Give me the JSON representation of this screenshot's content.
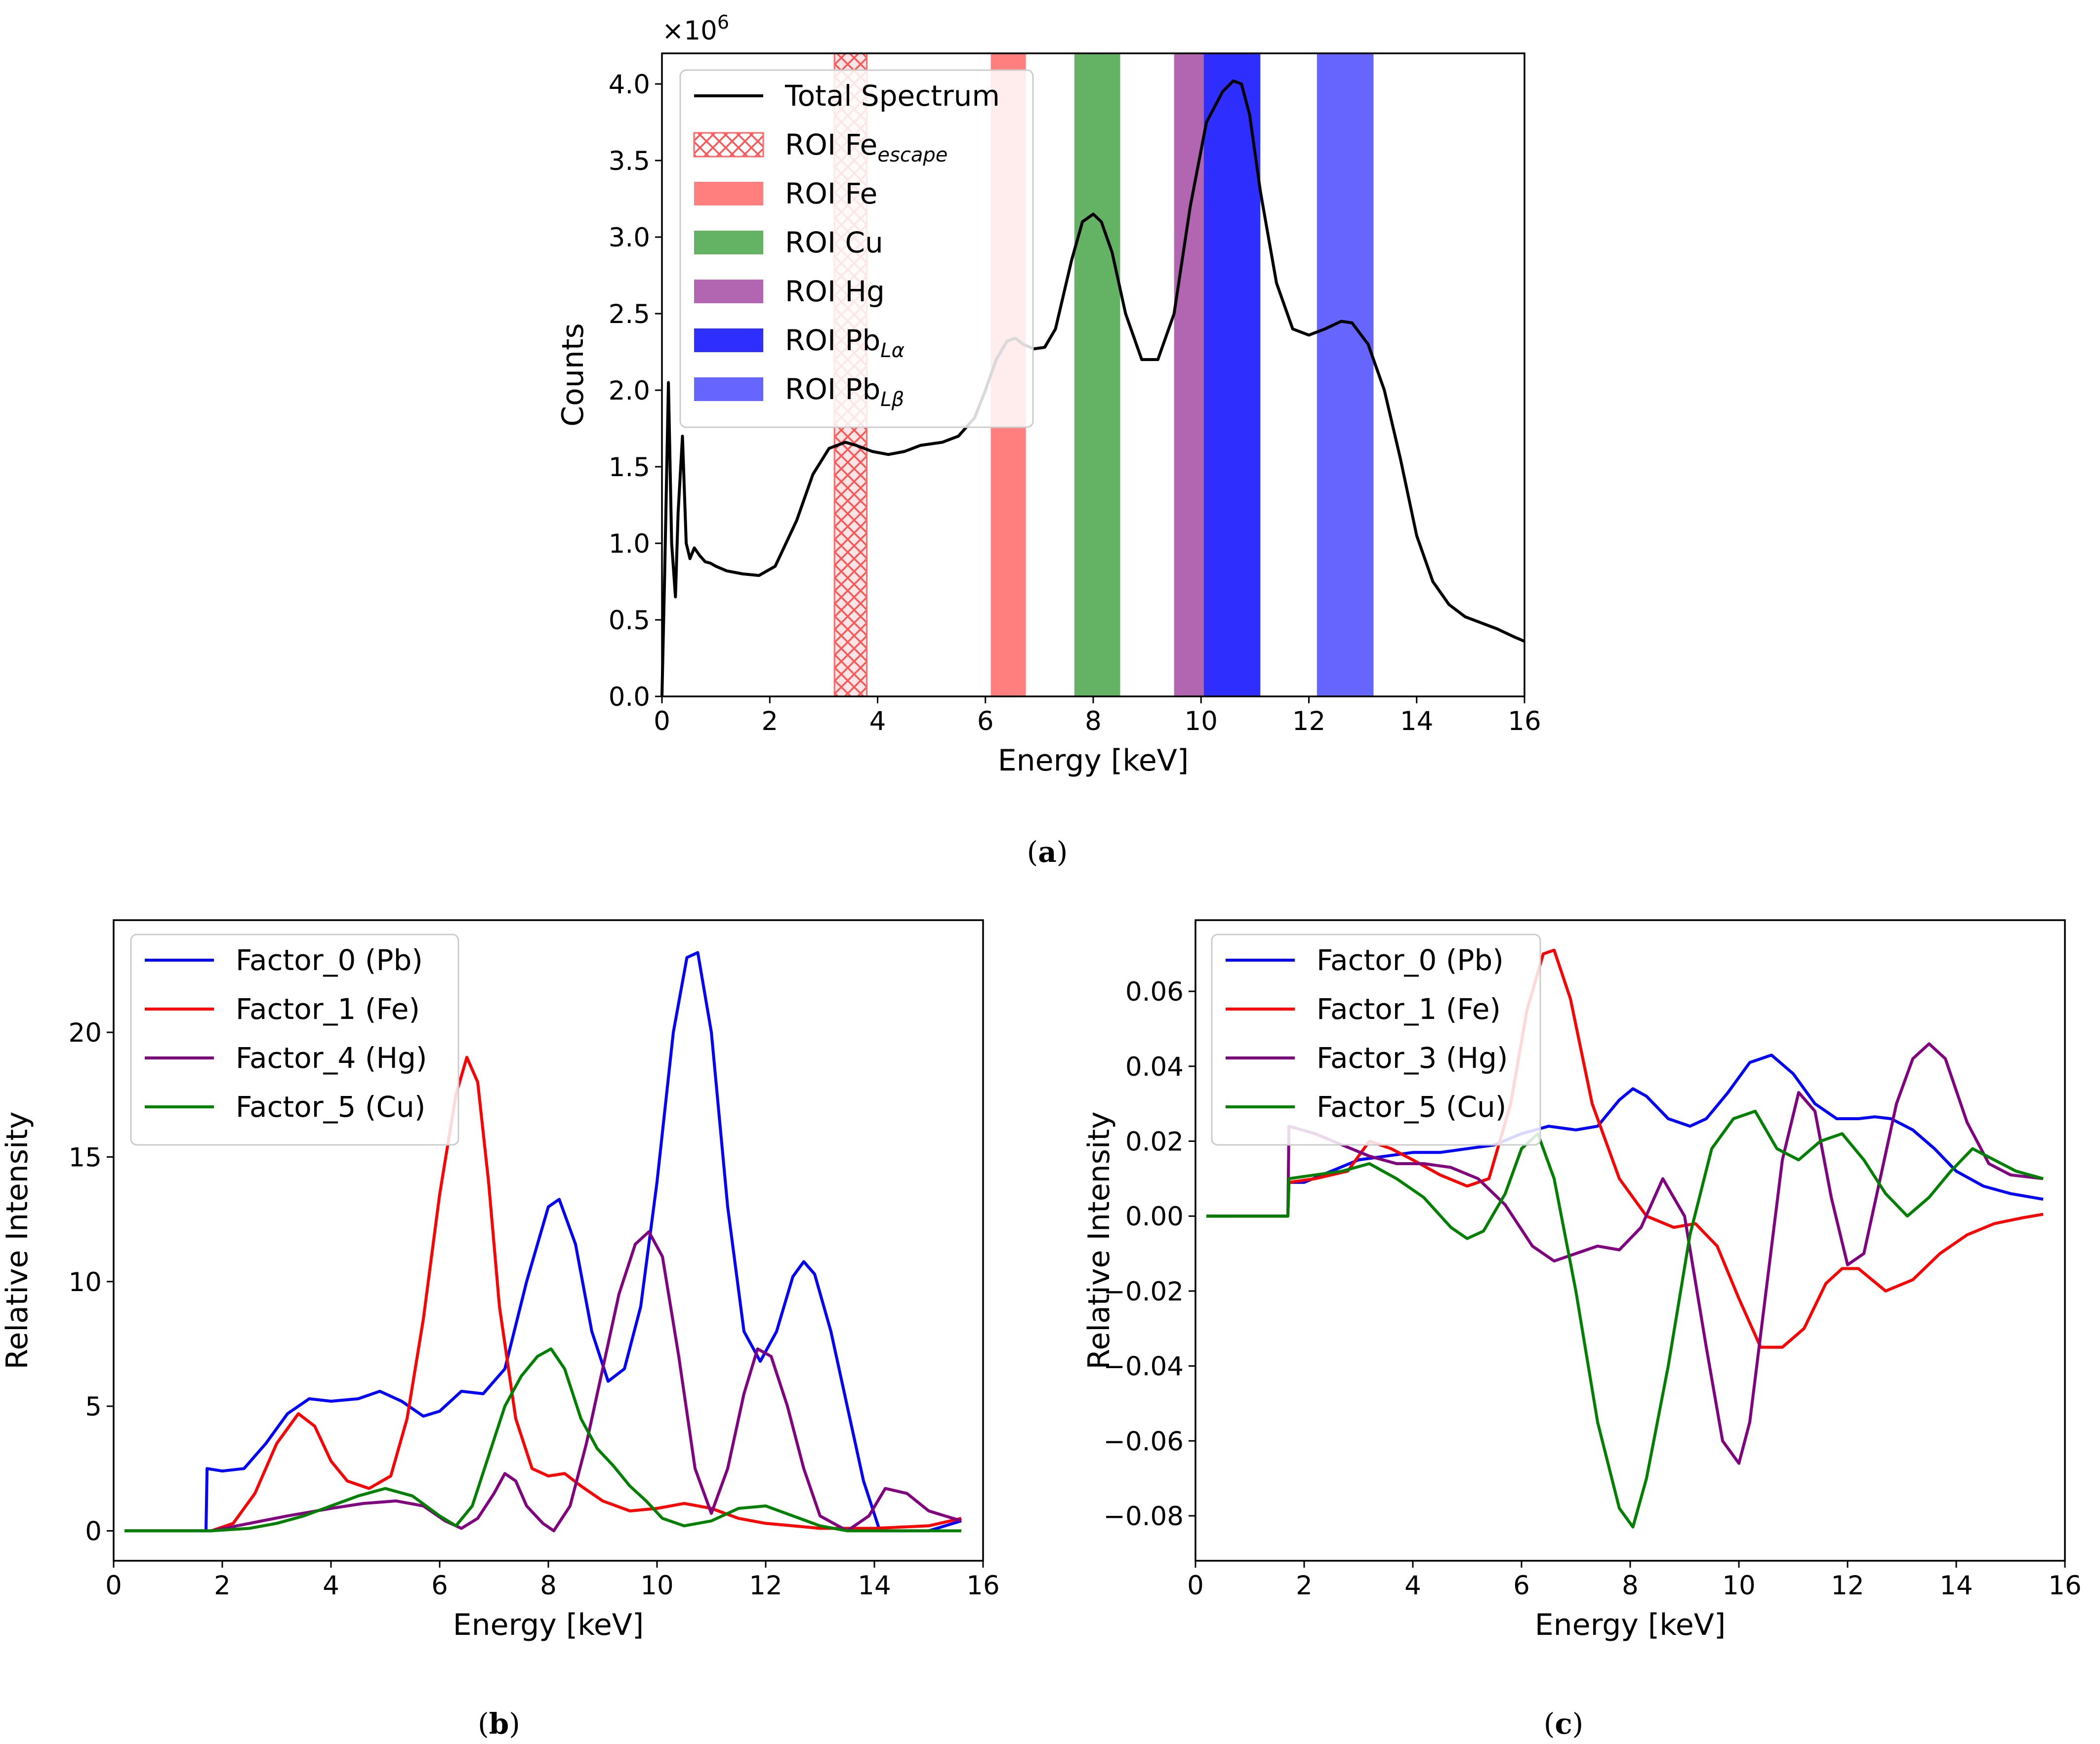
{
  "chart_data": [
    {
      "id": "a",
      "type": "line",
      "caption": "a",
      "xlabel": "Energy [keV]",
      "ylabel": "Counts",
      "offset_text": "×10",
      "offset_exponent": "6",
      "xlim": [
        0,
        16
      ],
      "ylim": [
        0,
        4.2
      ],
      "xticks": [
        0,
        2,
        4,
        6,
        8,
        10,
        12,
        14,
        16
      ],
      "yticks": [
        0.0,
        0.5,
        1.0,
        1.5,
        2.0,
        2.5,
        3.0,
        3.5,
        4.0
      ],
      "ytick_decimals": 1,
      "legend_location": "upper left",
      "rois": [
        {
          "name": "ROI Fe",
          "sub": "escape",
          "x0": 3.2,
          "x1": 3.8,
          "color": "#ff6666",
          "hatch": true,
          "alpha": 0.9
        },
        {
          "name": "ROI Fe",
          "sub": "",
          "x0": 6.1,
          "x1": 6.75,
          "color": "#ff7f7f",
          "hatch": false,
          "alpha": 1.0
        },
        {
          "name": "ROI Cu",
          "sub": "",
          "x0": 7.65,
          "x1": 8.5,
          "color": "#64b264",
          "hatch": false,
          "alpha": 1.0
        },
        {
          "name": "ROI Hg",
          "sub": "",
          "x0": 9.5,
          "x1": 10.05,
          "color": "#b266b2",
          "hatch": false,
          "alpha": 1.0
        },
        {
          "name": "ROI Pb",
          "sub": "Lα",
          "x0": 10.05,
          "x1": 11.1,
          "color": "#2e2eff",
          "hatch": false,
          "alpha": 1.0
        },
        {
          "name": "ROI Pb",
          "sub": "Lβ",
          "x0": 12.15,
          "x1": 13.2,
          "color": "#6666ff",
          "hatch": false,
          "alpha": 1.0
        }
      ],
      "series": [
        {
          "name": "Total Spectrum",
          "color": "#000000",
          "x": [
            0,
            0.05,
            0.12,
            0.18,
            0.25,
            0.3,
            0.38,
            0.45,
            0.52,
            0.6,
            0.7,
            0.8,
            0.9,
            1.0,
            1.2,
            1.5,
            1.8,
            2.1,
            2.5,
            2.8,
            3.1,
            3.4,
            3.6,
            3.9,
            4.2,
            4.5,
            4.8,
            5.2,
            5.5,
            5.8,
            6.0,
            6.2,
            6.4,
            6.55,
            6.7,
            6.9,
            7.1,
            7.3,
            7.6,
            7.8,
            8.0,
            8.15,
            8.35,
            8.6,
            8.9,
            9.2,
            9.5,
            9.8,
            10.1,
            10.4,
            10.6,
            10.75,
            10.9,
            11.1,
            11.4,
            11.7,
            12.0,
            12.3,
            12.6,
            12.8,
            13.1,
            13.4,
            13.7,
            14.0,
            14.3,
            14.6,
            14.9,
            15.2,
            15.5,
            15.8,
            16.0
          ],
          "y": [
            0.0,
            0.8,
            2.05,
            1.0,
            0.65,
            1.2,
            1.7,
            1.0,
            0.9,
            0.97,
            0.92,
            0.88,
            0.87,
            0.85,
            0.82,
            0.8,
            0.79,
            0.85,
            1.15,
            1.45,
            1.62,
            1.66,
            1.64,
            1.6,
            1.58,
            1.6,
            1.64,
            1.66,
            1.7,
            1.82,
            2.0,
            2.2,
            2.32,
            2.34,
            2.3,
            2.27,
            2.28,
            2.4,
            2.85,
            3.1,
            3.15,
            3.1,
            2.9,
            2.5,
            2.2,
            2.2,
            2.5,
            3.2,
            3.75,
            3.95,
            4.02,
            4.0,
            3.8,
            3.3,
            2.7,
            2.4,
            2.36,
            2.4,
            2.45,
            2.44,
            2.3,
            2.0,
            1.55,
            1.05,
            0.75,
            0.6,
            0.52,
            0.48,
            0.44,
            0.39,
            0.36
          ]
        }
      ]
    },
    {
      "id": "b",
      "type": "line",
      "caption": "b",
      "xlabel": "Energy [keV]",
      "ylabel": "Relative Intensity",
      "xlim": [
        0,
        16
      ],
      "ylim": [
        -1.2,
        24.5
      ],
      "xticks": [
        0,
        2,
        4,
        6,
        8,
        10,
        12,
        14,
        16
      ],
      "yticks": [
        0,
        5,
        10,
        15,
        20
      ],
      "ytick_decimals": 0,
      "legend_location": "upper left",
      "series": [
        {
          "name": "Factor_0 (Pb)",
          "color": "#0000ff",
          "x": [
            0.2,
            1.7,
            1.72,
            2.0,
            2.4,
            2.8,
            3.2,
            3.6,
            4.0,
            4.5,
            4.9,
            5.3,
            5.7,
            6.0,
            6.4,
            6.8,
            7.2,
            7.6,
            8.0,
            8.2,
            8.5,
            8.8,
            9.1,
            9.4,
            9.7,
            10.0,
            10.3,
            10.55,
            10.75,
            11.0,
            11.3,
            11.6,
            11.9,
            12.2,
            12.5,
            12.7,
            12.9,
            13.2,
            13.5,
            13.8,
            14.1,
            14.5,
            15.0,
            15.6
          ],
          "y": [
            0,
            0,
            2.5,
            2.4,
            2.5,
            3.5,
            4.7,
            5.3,
            5.2,
            5.3,
            5.6,
            5.2,
            4.6,
            4.8,
            5.6,
            5.5,
            6.5,
            10.0,
            13.0,
            13.3,
            11.5,
            8.0,
            6.0,
            6.5,
            9.0,
            14.0,
            20.0,
            23.0,
            23.2,
            20.0,
            13.0,
            8.0,
            6.8,
            8.0,
            10.2,
            10.8,
            10.3,
            8.0,
            5.0,
            2.0,
            0.0,
            0.0,
            0.0,
            0.4
          ]
        },
        {
          "name": "Factor_1 (Fe)",
          "color": "#ff0000",
          "x": [
            0.2,
            1.8,
            2.2,
            2.6,
            3.0,
            3.4,
            3.7,
            4.0,
            4.3,
            4.7,
            5.1,
            5.4,
            5.7,
            6.0,
            6.3,
            6.5,
            6.7,
            6.9,
            7.1,
            7.4,
            7.7,
            8.0,
            8.3,
            8.6,
            9.0,
            9.5,
            10.0,
            10.5,
            11.0,
            11.5,
            12.0,
            12.5,
            13.0,
            14.0,
            15.0,
            15.6
          ],
          "y": [
            0,
            0,
            0.3,
            1.5,
            3.5,
            4.7,
            4.2,
            2.8,
            2.0,
            1.7,
            2.2,
            4.5,
            8.5,
            13.5,
            17.5,
            19.0,
            18.0,
            14.0,
            9.0,
            4.5,
            2.5,
            2.2,
            2.3,
            1.8,
            1.2,
            0.8,
            0.9,
            1.1,
            0.9,
            0.5,
            0.3,
            0.2,
            0.1,
            0.1,
            0.2,
            0.5
          ]
        },
        {
          "name": "Factor_4 (Hg)",
          "color": "#800080",
          "x": [
            0.2,
            1.8,
            2.5,
            3.2,
            4.0,
            4.6,
            5.2,
            5.7,
            6.1,
            6.4,
            6.7,
            7.0,
            7.2,
            7.4,
            7.6,
            7.9,
            8.1,
            8.4,
            8.7,
            9.0,
            9.3,
            9.6,
            9.85,
            10.1,
            10.4,
            10.7,
            11.0,
            11.3,
            11.6,
            11.85,
            12.1,
            12.4,
            12.7,
            13.0,
            13.5,
            13.9,
            14.2,
            14.6,
            15.0,
            15.6
          ],
          "y": [
            0,
            0,
            0.3,
            0.6,
            0.9,
            1.1,
            1.2,
            1.0,
            0.4,
            0.1,
            0.5,
            1.5,
            2.3,
            2.0,
            1.0,
            0.3,
            0.0,
            1.0,
            3.5,
            6.5,
            9.5,
            11.5,
            12.0,
            11.0,
            7.0,
            2.5,
            0.7,
            2.5,
            5.5,
            7.3,
            7.0,
            5.0,
            2.5,
            0.6,
            0.0,
            0.6,
            1.7,
            1.5,
            0.8,
            0.4
          ]
        },
        {
          "name": "Factor_5 (Cu)",
          "color": "#008000",
          "x": [
            0.2,
            1.8,
            2.5,
            3.0,
            3.5,
            4.0,
            4.5,
            5.0,
            5.5,
            6.0,
            6.3,
            6.6,
            6.9,
            7.2,
            7.5,
            7.8,
            8.05,
            8.3,
            8.6,
            8.9,
            9.2,
            9.5,
            9.8,
            10.1,
            10.5,
            11.0,
            11.5,
            12.0,
            12.5,
            13.0,
            13.5,
            14.0,
            15.0,
            15.6
          ],
          "y": [
            0,
            0,
            0.1,
            0.3,
            0.6,
            1.0,
            1.4,
            1.7,
            1.4,
            0.6,
            0.2,
            1.0,
            3.0,
            5.0,
            6.2,
            7.0,
            7.3,
            6.5,
            4.5,
            3.3,
            2.6,
            1.8,
            1.2,
            0.5,
            0.2,
            0.4,
            0.9,
            1.0,
            0.6,
            0.2,
            0.0,
            0.0,
            0.0,
            0.0
          ]
        }
      ]
    },
    {
      "id": "c",
      "type": "line",
      "caption": "c",
      "xlabel": "Energy [keV]",
      "ylabel": "Relative Intensity",
      "xlim": [
        0,
        16
      ],
      "ylim": [
        -0.092,
        0.079
      ],
      "xticks": [
        0,
        2,
        4,
        6,
        8,
        10,
        12,
        14,
        16
      ],
      "yticks": [
        -0.08,
        -0.06,
        -0.04,
        -0.02,
        0.0,
        0.02,
        0.04,
        0.06
      ],
      "ytick_decimals": 2,
      "legend_location": "upper left",
      "series": [
        {
          "name": "Factor_0 (Pb)",
          "color": "#0000ff",
          "x": [
            0.2,
            1.7,
            1.72,
            2.0,
            2.5,
            3.0,
            3.5,
            4.0,
            4.5,
            5.0,
            5.5,
            6.0,
            6.5,
            7.0,
            7.4,
            7.8,
            8.05,
            8.3,
            8.7,
            9.1,
            9.4,
            9.8,
            10.2,
            10.6,
            11.0,
            11.4,
            11.8,
            12.2,
            12.5,
            12.8,
            13.2,
            13.6,
            14.0,
            14.5,
            15.0,
            15.6
          ],
          "y": [
            0,
            0,
            0.009,
            0.009,
            0.012,
            0.015,
            0.016,
            0.017,
            0.017,
            0.018,
            0.019,
            0.022,
            0.024,
            0.023,
            0.024,
            0.031,
            0.034,
            0.032,
            0.026,
            0.024,
            0.026,
            0.033,
            0.041,
            0.043,
            0.038,
            0.03,
            0.026,
            0.026,
            0.0265,
            0.026,
            0.023,
            0.018,
            0.012,
            0.008,
            0.006,
            0.0045
          ]
        },
        {
          "name": "Factor_1 (Fe)",
          "color": "#ff0000",
          "x": [
            0.2,
            1.7,
            1.72,
            2.2,
            2.8,
            3.2,
            3.6,
            4.0,
            4.5,
            5.0,
            5.4,
            5.8,
            6.1,
            6.4,
            6.6,
            6.9,
            7.3,
            7.8,
            8.3,
            8.8,
            9.2,
            9.6,
            10.0,
            10.4,
            10.8,
            11.2,
            11.6,
            11.9,
            12.2,
            12.7,
            13.2,
            13.7,
            14.2,
            14.7,
            15.2,
            15.6
          ],
          "y": [
            0,
            0,
            0.009,
            0.01,
            0.012,
            0.02,
            0.018,
            0.015,
            0.011,
            0.008,
            0.01,
            0.03,
            0.055,
            0.07,
            0.071,
            0.058,
            0.03,
            0.01,
            0.0,
            -0.003,
            -0.002,
            -0.008,
            -0.022,
            -0.035,
            -0.035,
            -0.03,
            -0.018,
            -0.014,
            -0.014,
            -0.02,
            -0.017,
            -0.01,
            -0.005,
            -0.002,
            -0.0005,
            0.0005
          ]
        },
        {
          "name": "Factor_3 (Hg)",
          "color": "#800080",
          "x": [
            0.2,
            1.7,
            1.72,
            2.2,
            2.7,
            3.2,
            3.7,
            4.2,
            4.7,
            5.2,
            5.7,
            6.2,
            6.6,
            7.0,
            7.4,
            7.8,
            8.2,
            8.6,
            9.0,
            9.4,
            9.7,
            10.0,
            10.2,
            10.5,
            10.8,
            11.1,
            11.4,
            11.7,
            12.0,
            12.3,
            12.6,
            12.9,
            13.2,
            13.5,
            13.8,
            14.2,
            14.6,
            15.0,
            15.6
          ],
          "y": [
            0,
            0,
            0.024,
            0.022,
            0.019,
            0.016,
            0.014,
            0.014,
            0.013,
            0.01,
            0.003,
            -0.008,
            -0.012,
            -0.01,
            -0.008,
            -0.009,
            -0.003,
            0.01,
            0.0,
            -0.035,
            -0.06,
            -0.066,
            -0.055,
            -0.02,
            0.015,
            0.033,
            0.028,
            0.005,
            -0.013,
            -0.01,
            0.01,
            0.03,
            0.042,
            0.046,
            0.042,
            0.025,
            0.014,
            0.011,
            0.01
          ]
        },
        {
          "name": "Factor_5 (Cu)",
          "color": "#008000",
          "x": [
            0.2,
            1.7,
            1.72,
            2.2,
            2.7,
            3.2,
            3.7,
            4.2,
            4.7,
            5.0,
            5.3,
            5.7,
            6.0,
            6.3,
            6.6,
            7.0,
            7.4,
            7.8,
            8.05,
            8.3,
            8.7,
            9.1,
            9.5,
            9.9,
            10.3,
            10.7,
            11.1,
            11.5,
            11.9,
            12.3,
            12.7,
            13.1,
            13.5,
            13.9,
            14.3,
            14.7,
            15.1,
            15.6
          ],
          "y": [
            0,
            0,
            0.01,
            0.011,
            0.012,
            0.014,
            0.01,
            0.005,
            -0.003,
            -0.006,
            -0.004,
            0.006,
            0.018,
            0.022,
            0.01,
            -0.02,
            -0.055,
            -0.078,
            -0.083,
            -0.07,
            -0.04,
            -0.005,
            0.018,
            0.026,
            0.028,
            0.018,
            0.015,
            0.02,
            0.022,
            0.015,
            0.006,
            0.0,
            0.005,
            0.012,
            0.018,
            0.015,
            0.012,
            0.01
          ]
        }
      ]
    }
  ]
}
